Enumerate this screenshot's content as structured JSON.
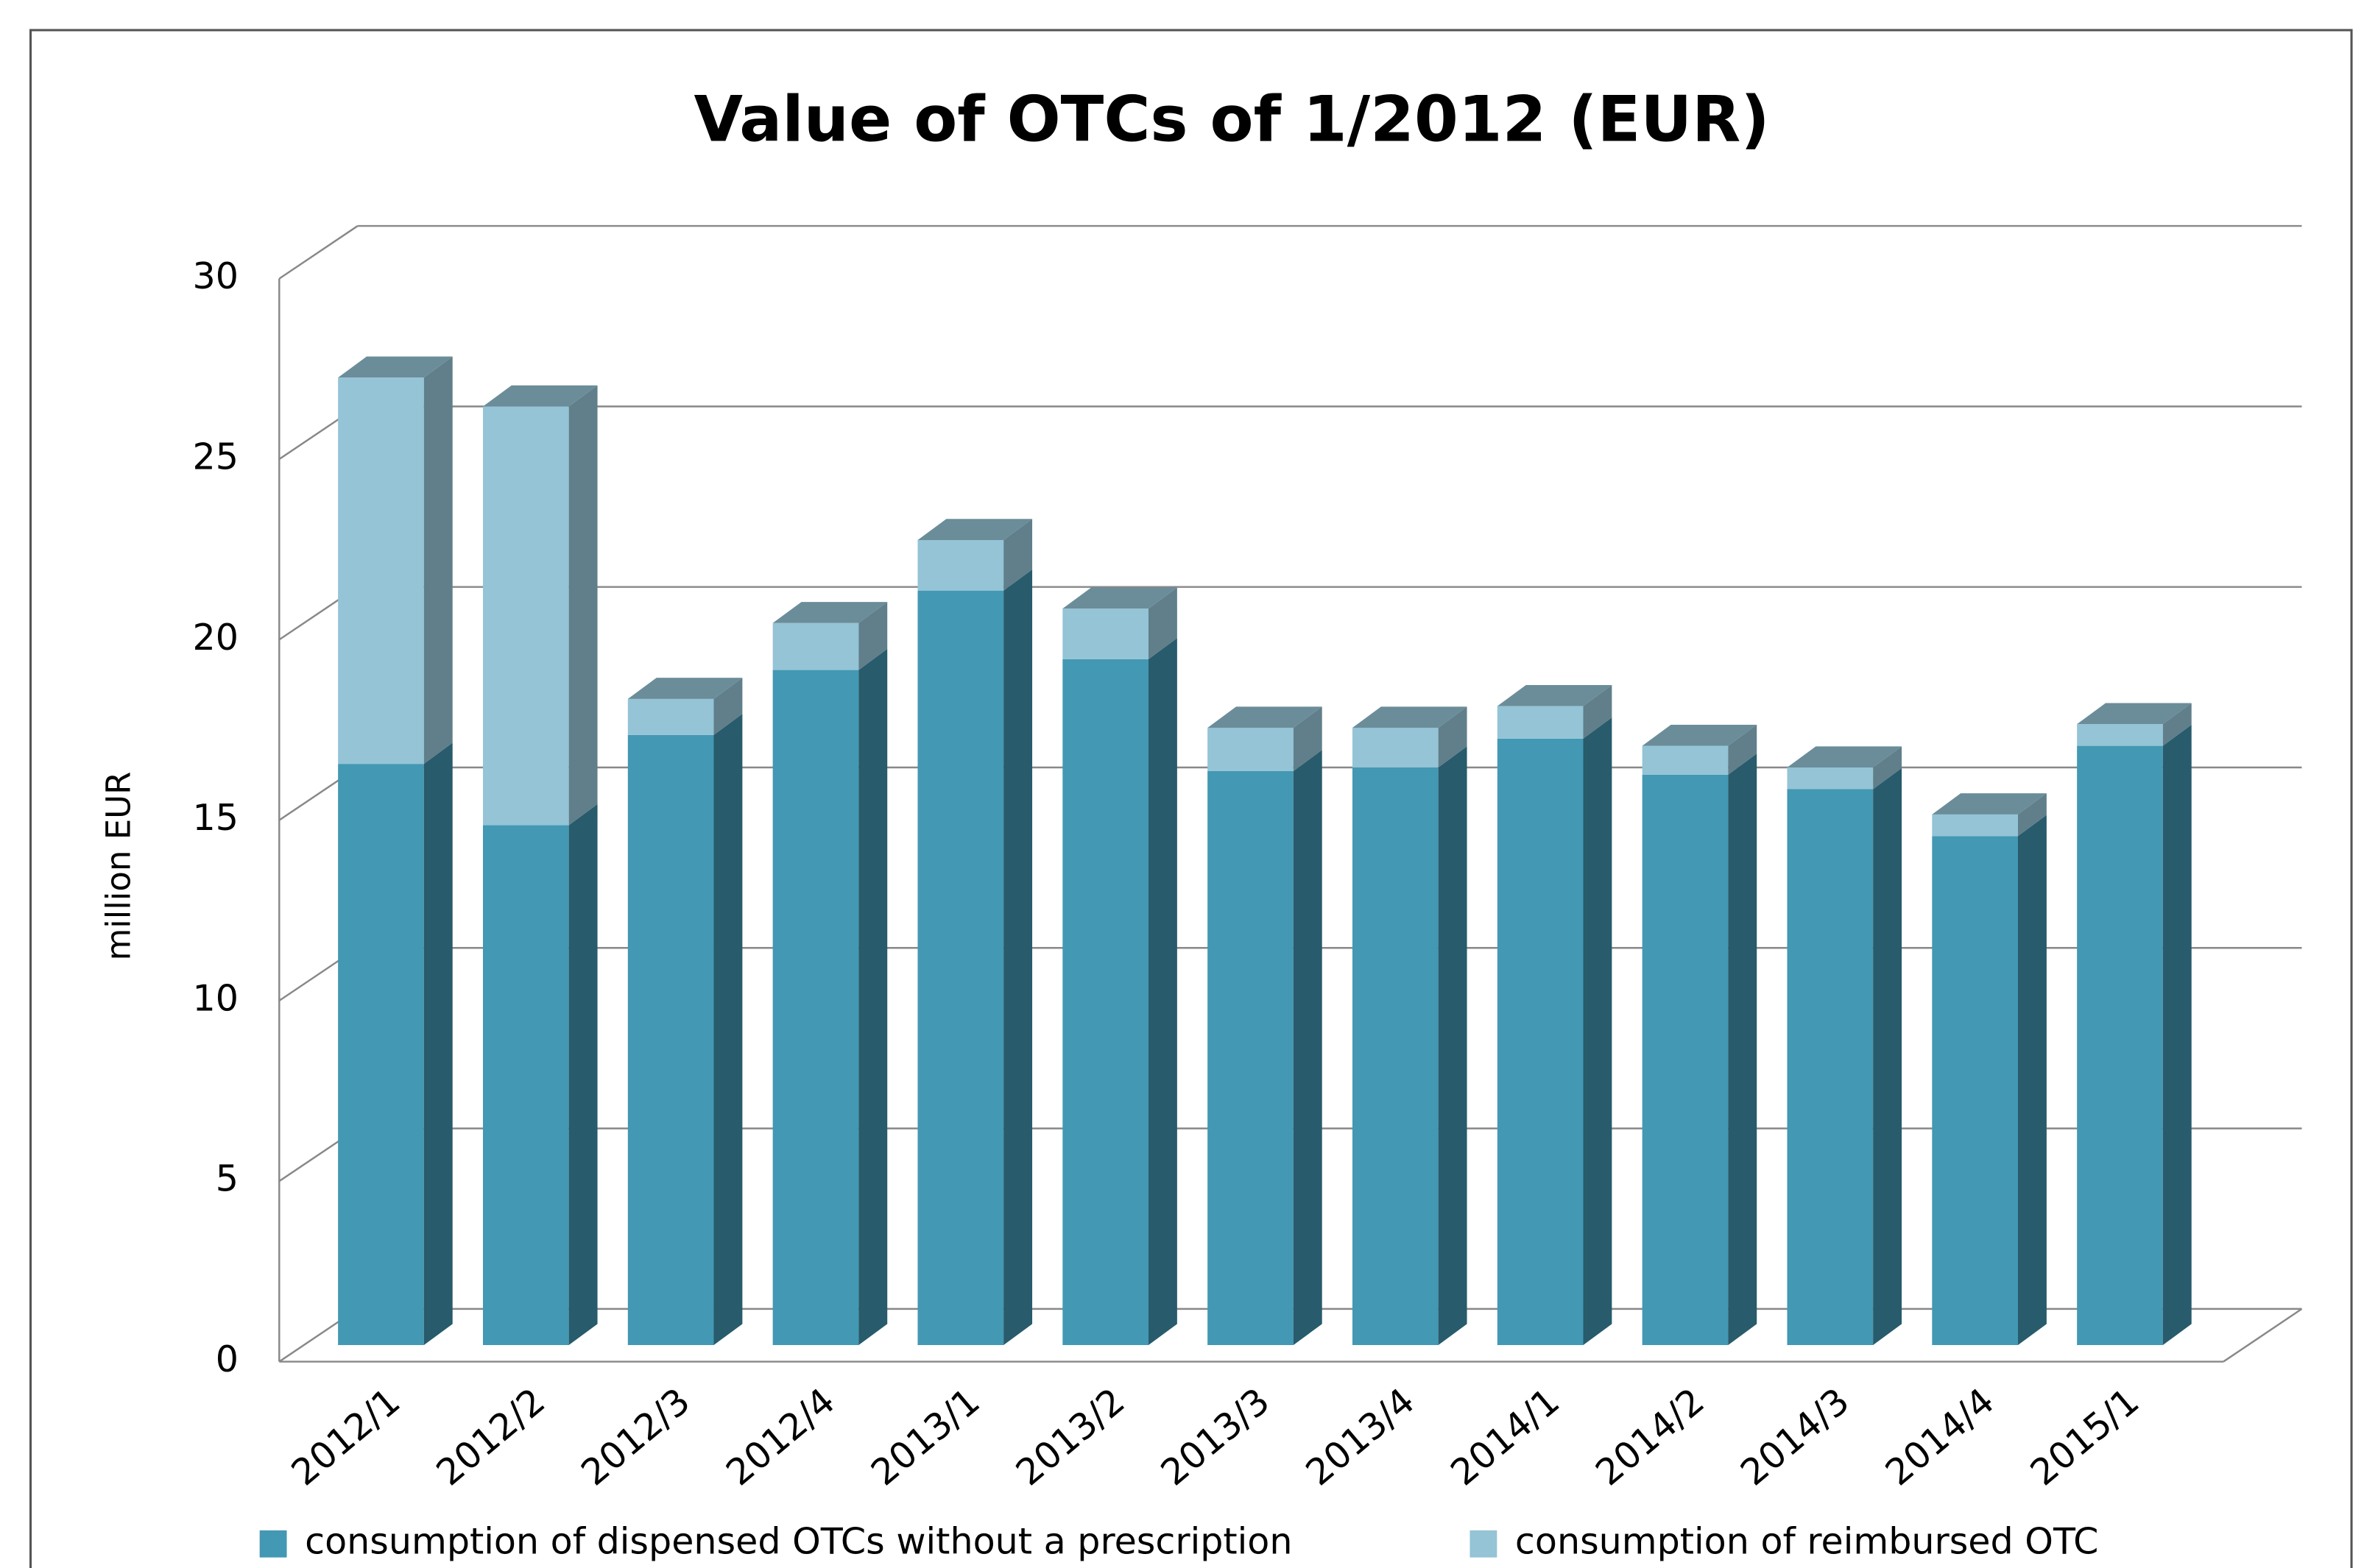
{
  "chart_data": {
    "type": "bar3d_stacked",
    "title": "Value of OTCs of 1/2012 (EUR)",
    "y_label": "million EUR",
    "categories": [
      "2012/1",
      "2012/2",
      "2012/3",
      "2012/4",
      "2013/1",
      "2013/2",
      "2013/3",
      "2013/4",
      "2014/1",
      "2014/2",
      "2014/3",
      "2014/4",
      "2015/1"
    ],
    "series": [
      {
        "name": "consumption of dispensed OTCs without a prescription",
        "color": "#4398b3",
        "values": [
          16.1,
          14.4,
          16.9,
          18.7,
          20.9,
          19.0,
          15.9,
          16.0,
          16.8,
          15.8,
          15.4,
          14.1,
          16.6
        ]
      },
      {
        "name": "consumption of reimbursed OTC",
        "color": "#94c4d6",
        "values": [
          10.7,
          11.6,
          1.0,
          1.3,
          1.4,
          1.4,
          1.2,
          1.1,
          0.9,
          0.8,
          0.6,
          0.6,
          0.6
        ]
      }
    ],
    "ylim": [
      0,
      30
    ],
    "yticks": [
      0,
      5,
      10,
      15,
      20,
      25,
      30
    ],
    "grid": true,
    "legend": "bottom"
  }
}
